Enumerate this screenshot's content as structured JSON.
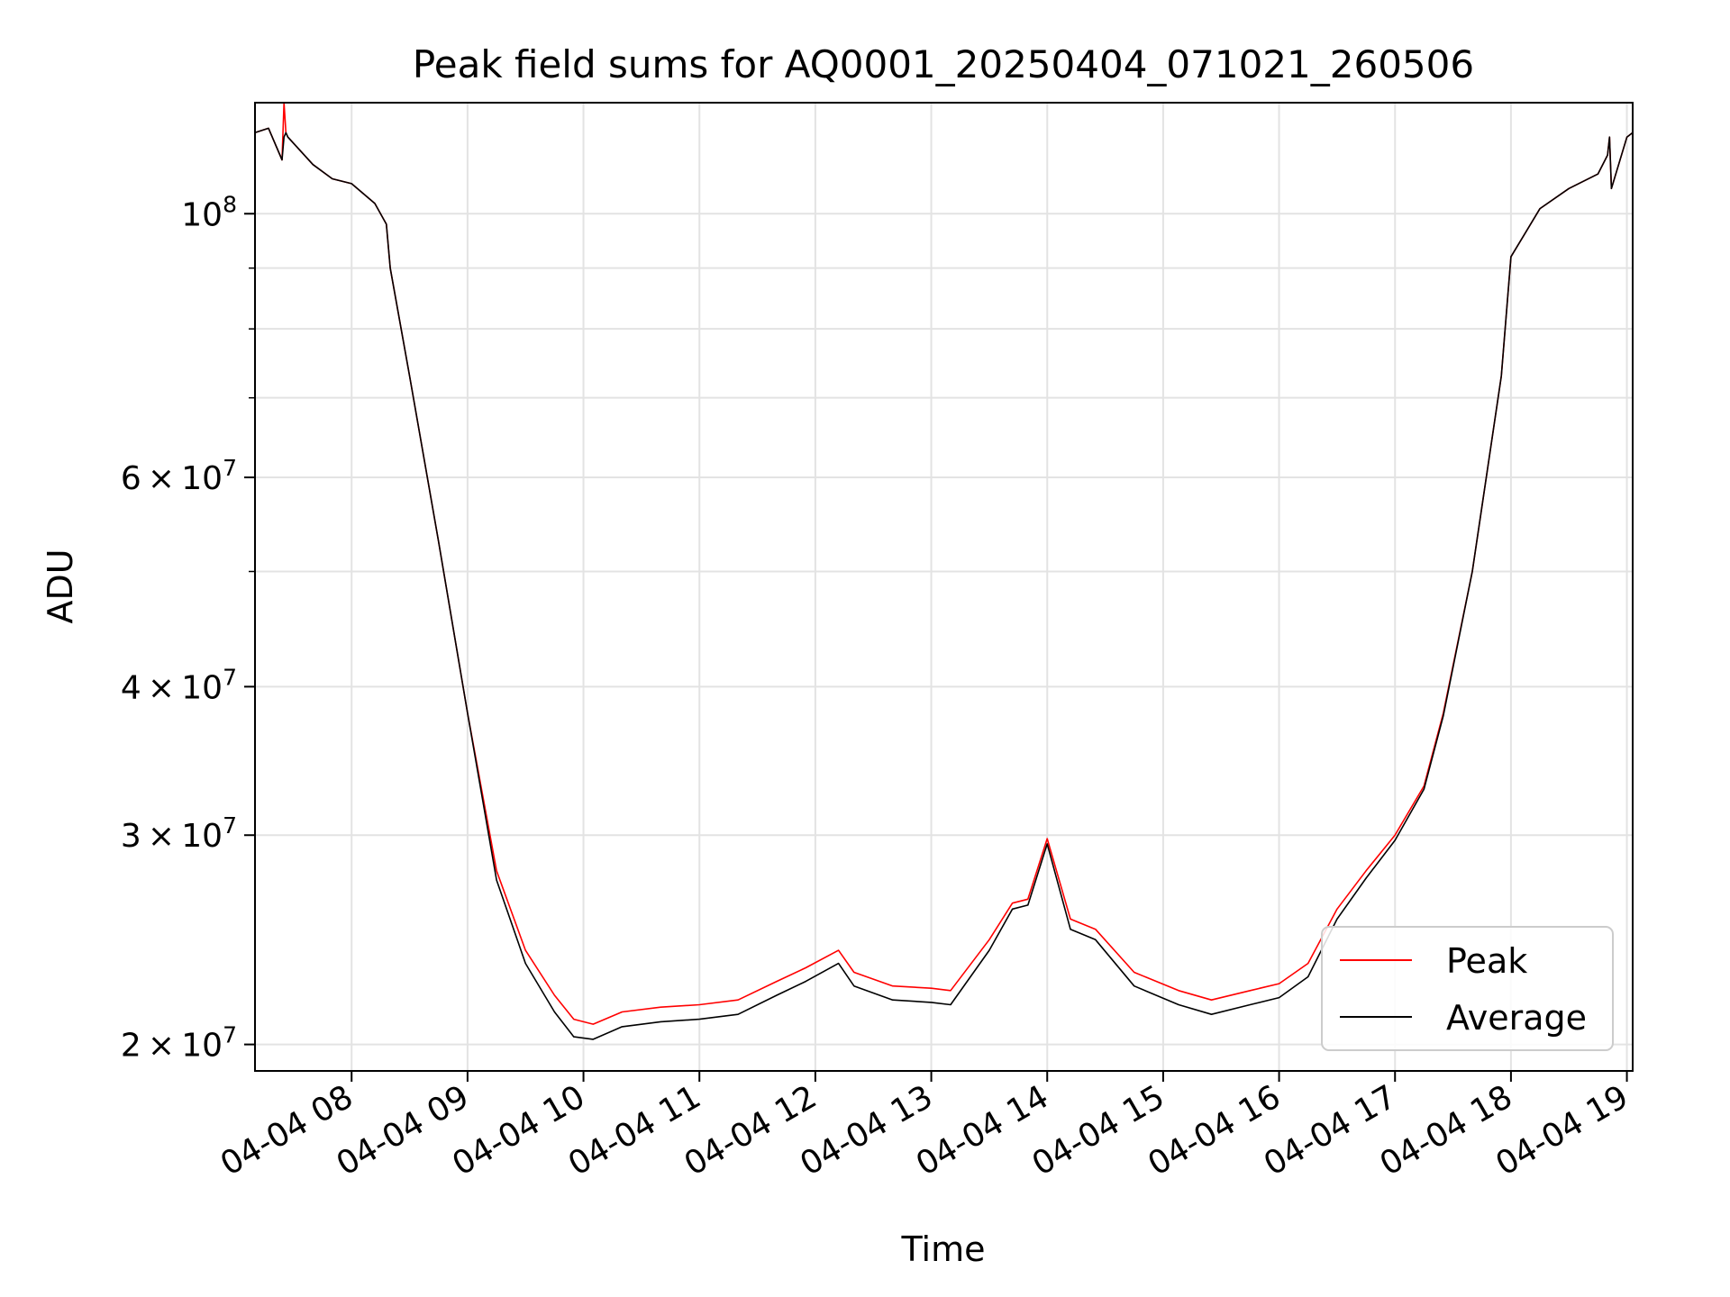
{
  "chart_data": {
    "type": "line",
    "title": "Peak field sums for AQ0001_20250404_071021_260506",
    "xlabel": "Time",
    "ylabel": "ADU",
    "yscale": "log",
    "ylim": [
      19000000,
      124000000
    ],
    "xlim": [
      "2025-04-04 07:10",
      "2025-04-04 19:03"
    ],
    "grid": true,
    "legend_position": "lower right",
    "x_tick_labels": [
      "04-04 08",
      "04-04 09",
      "04-04 10",
      "04-04 11",
      "04-04 12",
      "04-04 13",
      "04-04 14",
      "04-04 15",
      "04-04 16",
      "04-04 17",
      "04-04 18",
      "04-04 19"
    ],
    "x_tick_times": [
      "2025-04-04 08:00",
      "2025-04-04 09:00",
      "2025-04-04 10:00",
      "2025-04-04 11:00",
      "2025-04-04 12:00",
      "2025-04-04 13:00",
      "2025-04-04 14:00",
      "2025-04-04 15:00",
      "2025-04-04 16:00",
      "2025-04-04 17:00",
      "2025-04-04 18:00",
      "2025-04-04 19:00"
    ],
    "y_major_ticks": [
      {
        "value": 20000000,
        "mantissa": "2",
        "base": "10",
        "exp": "7"
      },
      {
        "value": 30000000,
        "mantissa": "3",
        "base": "10",
        "exp": "7"
      },
      {
        "value": 40000000,
        "mantissa": "4",
        "base": "10",
        "exp": "7"
      },
      {
        "value": 60000000,
        "mantissa": "6",
        "base": "10",
        "exp": "7"
      },
      {
        "value": 100000000,
        "mantissa": "",
        "base": "10",
        "exp": "8"
      }
    ],
    "y_minor_ticks": [
      50000000,
      70000000,
      80000000,
      90000000
    ],
    "series": [
      {
        "name": "Peak",
        "color": "#ff0000",
        "x": [
          "2025-04-04 07:10",
          "2025-04-04 07:17",
          "2025-04-04 07:24",
          "2025-04-04 07:25",
          "2025-04-04 07:26",
          "2025-04-04 07:27",
          "2025-04-04 07:40",
          "2025-04-04 07:50",
          "2025-04-04 08:00",
          "2025-04-04 08:12",
          "2025-04-04 08:18",
          "2025-04-04 08:20",
          "2025-04-04 08:30",
          "2025-04-04 08:45",
          "2025-04-04 09:00",
          "2025-04-04 09:15",
          "2025-04-04 09:30",
          "2025-04-04 09:45",
          "2025-04-04 09:55",
          "2025-04-04 10:05",
          "2025-04-04 10:20",
          "2025-04-04 10:40",
          "2025-04-04 11:00",
          "2025-04-04 11:20",
          "2025-04-04 11:40",
          "2025-04-04 11:55",
          "2025-04-04 12:12",
          "2025-04-04 12:20",
          "2025-04-04 12:40",
          "2025-04-04 13:00",
          "2025-04-04 13:10",
          "2025-04-04 13:30",
          "2025-04-04 13:42",
          "2025-04-04 13:50",
          "2025-04-04 14:00",
          "2025-04-04 14:12",
          "2025-04-04 14:25",
          "2025-04-04 14:45",
          "2025-04-04 15:08",
          "2025-04-04 15:25",
          "2025-04-04 15:45",
          "2025-04-04 16:00",
          "2025-04-04 16:15",
          "2025-04-04 16:30",
          "2025-04-04 16:45",
          "2025-04-04 17:00",
          "2025-04-04 17:15",
          "2025-04-04 17:25",
          "2025-04-04 17:40",
          "2025-04-04 17:55",
          "2025-04-04 18:00",
          "2025-04-04 18:15",
          "2025-04-04 18:30",
          "2025-04-04 18:45",
          "2025-04-04 18:50",
          "2025-04-04 18:51",
          "2025-04-04 18:52",
          "2025-04-04 19:00",
          "2025-04-04 19:03"
        ],
        "values": [
          117000000,
          118000000,
          111000000,
          124000000,
          117000000,
          116000000,
          110000000,
          107000000,
          106000000,
          102000000,
          98000000,
          90000000,
          73000000,
          53000000,
          38000000,
          28000000,
          24000000,
          22000000,
          21000000,
          20800000,
          21300000,
          21500000,
          21600000,
          21800000,
          22600000,
          23200000,
          24000000,
          23000000,
          22400000,
          22300000,
          22200000,
          24500000,
          26300000,
          26500000,
          29800000,
          25500000,
          25000000,
          23000000,
          22200000,
          21800000,
          22200000,
          22500000,
          23400000,
          26000000,
          28000000,
          30000000,
          33000000,
          38000000,
          50000000,
          73000000,
          92000000,
          101000000,
          105000000,
          108000000,
          112000000,
          116000000,
          105000000,
          116000000,
          117000000
        ]
      },
      {
        "name": "Average",
        "color": "#000000",
        "x": [
          "2025-04-04 07:10",
          "2025-04-04 07:17",
          "2025-04-04 07:24",
          "2025-04-04 07:25",
          "2025-04-04 07:26",
          "2025-04-04 07:27",
          "2025-04-04 07:40",
          "2025-04-04 07:50",
          "2025-04-04 08:00",
          "2025-04-04 08:12",
          "2025-04-04 08:18",
          "2025-04-04 08:20",
          "2025-04-04 08:30",
          "2025-04-04 08:45",
          "2025-04-04 09:00",
          "2025-04-04 09:15",
          "2025-04-04 09:30",
          "2025-04-04 09:45",
          "2025-04-04 09:55",
          "2025-04-04 10:05",
          "2025-04-04 10:20",
          "2025-04-04 10:40",
          "2025-04-04 11:00",
          "2025-04-04 11:20",
          "2025-04-04 11:40",
          "2025-04-04 11:55",
          "2025-04-04 12:12",
          "2025-04-04 12:20",
          "2025-04-04 12:40",
          "2025-04-04 13:00",
          "2025-04-04 13:10",
          "2025-04-04 13:30",
          "2025-04-04 13:42",
          "2025-04-04 13:50",
          "2025-04-04 14:00",
          "2025-04-04 14:12",
          "2025-04-04 14:25",
          "2025-04-04 14:45",
          "2025-04-04 15:08",
          "2025-04-04 15:25",
          "2025-04-04 15:45",
          "2025-04-04 16:00",
          "2025-04-04 16:15",
          "2025-04-04 16:30",
          "2025-04-04 16:45",
          "2025-04-04 17:00",
          "2025-04-04 17:15",
          "2025-04-04 17:25",
          "2025-04-04 17:40",
          "2025-04-04 17:55",
          "2025-04-04 18:00",
          "2025-04-04 18:15",
          "2025-04-04 18:30",
          "2025-04-04 18:45",
          "2025-04-04 18:50",
          "2025-04-04 18:51",
          "2025-04-04 18:52",
          "2025-04-04 19:00",
          "2025-04-04 19:03"
        ],
        "values": [
          117000000,
          118000000,
          111000000,
          116000000,
          117000000,
          116000000,
          110000000,
          107000000,
          106000000,
          102000000,
          98000000,
          90000000,
          73000000,
          53000000,
          38000000,
          27500000,
          23400000,
          21300000,
          20300000,
          20200000,
          20700000,
          20900000,
          21000000,
          21200000,
          22000000,
          22600000,
          23400000,
          22400000,
          21800000,
          21700000,
          21600000,
          24000000,
          26000000,
          26200000,
          29500000,
          25000000,
          24500000,
          22400000,
          21600000,
          21200000,
          21600000,
          21900000,
          22800000,
          25500000,
          27600000,
          29700000,
          32800000,
          37800000,
          50000000,
          73000000,
          92000000,
          101000000,
          105000000,
          108000000,
          112000000,
          116000000,
          105000000,
          116000000,
          117000000
        ]
      }
    ]
  }
}
